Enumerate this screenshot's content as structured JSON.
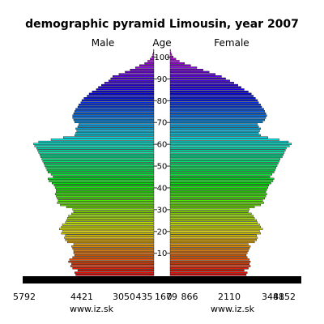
{
  "chart_data": {
    "type": "bar",
    "title": "demographic pyramid Limousin, year 2007",
    "left_label": "Male",
    "center_label": "Age",
    "right_label": "Female",
    "source_left": "www.iz.sk",
    "source_right": "www.iz.sk",
    "age_ticks": [
      10,
      20,
      30,
      40,
      50,
      60,
      70,
      80,
      90,
      100
    ],
    "male_ticks": [
      "5792",
      "4421",
      "3050",
      "1679",
      "435"
    ],
    "female_ticks": [
      "0",
      "866",
      "2110",
      "3481",
      "4852"
    ],
    "axis_max": 6300,
    "age_range": [
      0,
      104
    ],
    "series": [
      {
        "name": "Male",
        "values": [
          3800,
          3850,
          3700,
          3950,
          4050,
          4000,
          4150,
          4100,
          3950,
          3850,
          3900,
          3900,
          3950,
          4000,
          3900,
          4200,
          4300,
          4350,
          4300,
          4500,
          4450,
          4600,
          4500,
          4450,
          4300,
          4250,
          4200,
          4150,
          4000,
          3900,
          3950,
          4250,
          4550,
          4700,
          4650,
          4700,
          4750,
          4800,
          4750,
          4750,
          4800,
          4850,
          4950,
          5100,
          5150,
          4900,
          5000,
          5150,
          5200,
          5250,
          5300,
          5350,
          5400,
          5450,
          5500,
          5550,
          5600,
          5650,
          5700,
          5800,
          5850,
          5600,
          5000,
          4400,
          3850,
          3800,
          3750,
          3800,
          3700,
          3650,
          3850,
          3900,
          3950,
          3950,
          3900,
          3850,
          3800,
          3700,
          3650,
          3550,
          3500,
          3400,
          3250,
          3150,
          3000,
          2800,
          2700,
          2550,
          2400,
          2200,
          2100,
          2000,
          1700,
          1400,
          1150,
          900,
          700,
          450,
          300,
          180,
          100,
          60,
          30,
          15
        ]
      },
      {
        "name": "Female",
        "values": [
          3700,
          3750,
          3600,
          3800,
          3900,
          3850,
          3900,
          3850,
          3750,
          3700,
          3750,
          3800,
          3850,
          3900,
          3800,
          4100,
          4200,
          4250,
          4200,
          4400,
          4350,
          4500,
          4400,
          4350,
          4250,
          4200,
          4100,
          4050,
          3950,
          3800,
          3850,
          4100,
          4400,
          4550,
          4500,
          4600,
          4650,
          4700,
          4650,
          4700,
          4750,
          4800,
          4900,
          5000,
          5050,
          4850,
          4950,
          5050,
          5100,
          5150,
          5200,
          5250,
          5300,
          5350,
          5450,
          5500,
          5550,
          5600,
          5650,
          5800,
          5900,
          5750,
          5300,
          4750,
          4400,
          4300,
          4350,
          4400,
          4300,
          4250,
          4500,
          4600,
          4650,
          4700,
          4650,
          4600,
          4550,
          4450,
          4400,
          4300,
          4250,
          4150,
          4050,
          3950,
          3800,
          3600,
          3450,
          3300,
          3100,
          2900,
          2700,
          2500,
          2200,
          1900,
          1600,
          1300,
          1000,
          700,
          450,
          280,
          150,
          80,
          40,
          20
        ]
      }
    ]
  }
}
